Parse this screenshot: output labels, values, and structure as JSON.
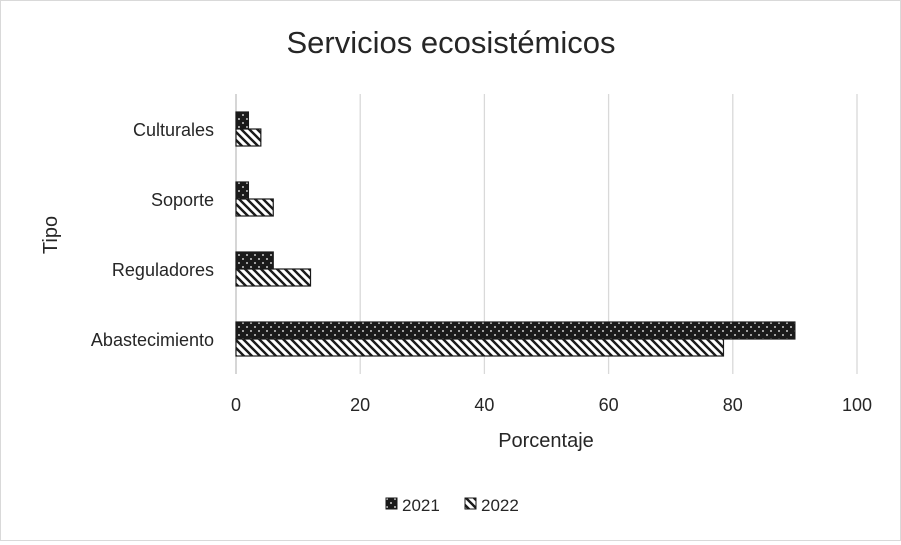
{
  "chart_data": {
    "type": "bar",
    "orientation": "horizontal",
    "title": "Servicios ecosistémicos",
    "xlabel": "Porcentaje",
    "ylabel": "Tipo",
    "categories": [
      "Abastecimiento",
      "Reguladores",
      "Soporte",
      "Culturales"
    ],
    "series": [
      {
        "name": "2021",
        "values": [
          90,
          6,
          2,
          2
        ],
        "pattern": "dots-on-black"
      },
      {
        "name": "2022",
        "values": [
          78.5,
          12,
          6,
          4
        ],
        "pattern": "diagonal-stripes"
      }
    ],
    "xlim": [
      0,
      100
    ],
    "xticks": [
      "0",
      "20",
      "40",
      "60",
      "80",
      "100"
    ],
    "grid": "vertical",
    "legend_position": "bottom",
    "colors": {
      "bar_fill": "#1a1a1a",
      "stripe_bg": "#ffffff",
      "grid": "#d9d9d9",
      "text": "#262626",
      "axis": "#bfbfbf"
    }
  }
}
